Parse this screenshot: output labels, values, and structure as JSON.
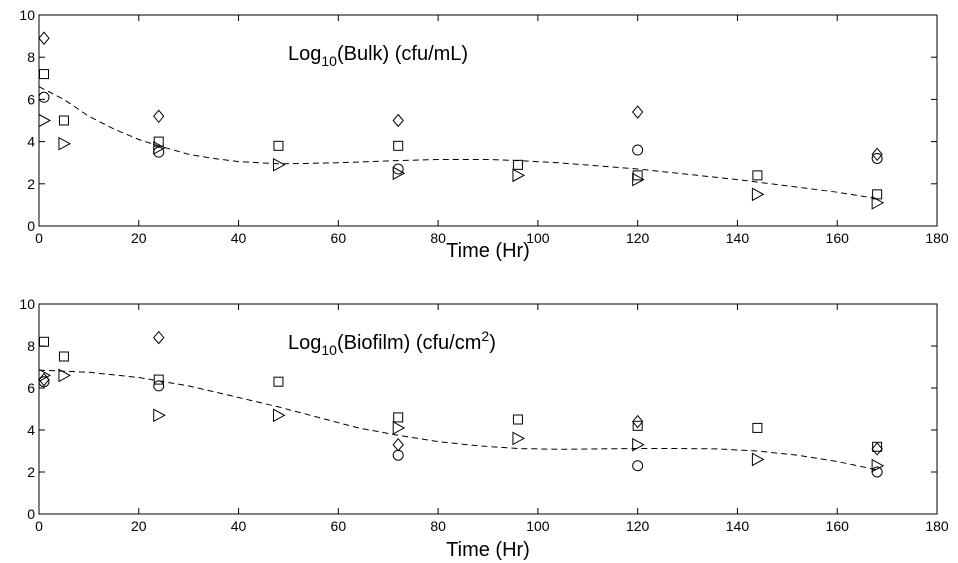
{
  "chart_data": [
    {
      "type": "scatter",
      "title_parts": {
        "pre": "Log",
        "sub": "10",
        "post": "(Bulk) (cfu/mL)",
        "sup": ""
      },
      "xlabel": "Time (Hr)",
      "ylabel": "",
      "xlim": [
        0,
        180
      ],
      "ylim": [
        0,
        10
      ],
      "xticks": [
        0,
        20,
        40,
        60,
        80,
        100,
        120,
        140,
        160,
        180
      ],
      "yticks": [
        0,
        2,
        4,
        6,
        8,
        10
      ],
      "grid": false,
      "series": [
        {
          "marker": "diamond",
          "points": [
            [
              1,
              8.9
            ],
            [
              24,
              5.2
            ],
            [
              72,
              5.0
            ],
            [
              120,
              5.4
            ],
            [
              168,
              3.4
            ]
          ]
        },
        {
          "marker": "square",
          "points": [
            [
              1,
              7.2
            ],
            [
              5,
              5.0
            ],
            [
              24,
              4.0
            ],
            [
              48,
              3.8
            ],
            [
              72,
              3.8
            ],
            [
              96,
              2.9
            ],
            [
              120,
              2.4
            ],
            [
              144,
              2.4
            ],
            [
              168,
              1.5
            ]
          ]
        },
        {
          "marker": "circle",
          "points": [
            [
              1,
              6.1
            ],
            [
              24,
              3.5
            ],
            [
              72,
              2.7
            ],
            [
              120,
              3.6
            ],
            [
              168,
              3.2
            ]
          ]
        },
        {
          "marker": "triangle-right",
          "points": [
            [
              1,
              5.0
            ],
            [
              5,
              3.9
            ],
            [
              24,
              3.7
            ],
            [
              48,
              2.9
            ],
            [
              72,
              2.5
            ],
            [
              96,
              2.4
            ],
            [
              120,
              2.2
            ],
            [
              144,
              1.5
            ],
            [
              168,
              1.1
            ]
          ]
        }
      ],
      "fit": {
        "style": "dashed",
        "points": [
          [
            0,
            6.6
          ],
          [
            5,
            6.0
          ],
          [
            10,
            5.2
          ],
          [
            15,
            4.6
          ],
          [
            20,
            4.1
          ],
          [
            24,
            3.8
          ],
          [
            30,
            3.4
          ],
          [
            35,
            3.2
          ],
          [
            40,
            3.05
          ],
          [
            48,
            2.95
          ],
          [
            55,
            2.97
          ],
          [
            60,
            3.0
          ],
          [
            72,
            3.1
          ],
          [
            80,
            3.15
          ],
          [
            90,
            3.15
          ],
          [
            96,
            3.1
          ],
          [
            104,
            3.0
          ],
          [
            112,
            2.85
          ],
          [
            120,
            2.7
          ],
          [
            130,
            2.45
          ],
          [
            140,
            2.2
          ],
          [
            150,
            1.9
          ],
          [
            160,
            1.6
          ],
          [
            168,
            1.3
          ]
        ]
      }
    },
    {
      "type": "scatter",
      "title_parts": {
        "pre": "Log",
        "sub": "10",
        "post": "(Biofilm) (cfu/cm",
        "sup": "2",
        "end": ")"
      },
      "xlabel": "Time (Hr)",
      "ylabel": "",
      "xlim": [
        0,
        180
      ],
      "ylim": [
        0,
        10
      ],
      "xticks": [
        0,
        20,
        40,
        60,
        80,
        100,
        120,
        140,
        160,
        180
      ],
      "yticks": [
        0,
        2,
        4,
        6,
        8,
        10
      ],
      "grid": false,
      "series": [
        {
          "marker": "diamond",
          "points": [
            [
              1,
              6.4
            ],
            [
              24,
              8.4
            ],
            [
              72,
              3.3
            ],
            [
              120,
              4.4
            ],
            [
              168,
              3.1
            ]
          ]
        },
        {
          "marker": "square",
          "points": [
            [
              1,
              8.2
            ],
            [
              5,
              7.5
            ],
            [
              24,
              6.4
            ],
            [
              48,
              6.3
            ],
            [
              72,
              4.6
            ],
            [
              96,
              4.5
            ],
            [
              120,
              4.2
            ],
            [
              144,
              4.1
            ],
            [
              168,
              3.2
            ]
          ]
        },
        {
          "marker": "circle",
          "points": [
            [
              1,
              6.3
            ],
            [
              24,
              6.1
            ],
            [
              72,
              2.8
            ],
            [
              120,
              2.3
            ],
            [
              168,
              2.0
            ]
          ]
        },
        {
          "marker": "triangle-right",
          "points": [
            [
              1,
              6.6
            ],
            [
              5,
              6.6
            ],
            [
              24,
              4.7
            ],
            [
              48,
              4.7
            ],
            [
              72,
              4.1
            ],
            [
              96,
              3.6
            ],
            [
              120,
              3.3
            ],
            [
              144,
              2.6
            ],
            [
              168,
              2.3
            ]
          ]
        }
      ],
      "fit": {
        "style": "dashed",
        "points": [
          [
            0,
            6.85
          ],
          [
            10,
            6.75
          ],
          [
            20,
            6.5
          ],
          [
            30,
            6.1
          ],
          [
            40,
            5.55
          ],
          [
            48,
            5.1
          ],
          [
            56,
            4.6
          ],
          [
            64,
            4.1
          ],
          [
            72,
            3.75
          ],
          [
            80,
            3.45
          ],
          [
            88,
            3.25
          ],
          [
            96,
            3.12
          ],
          [
            104,
            3.08
          ],
          [
            112,
            3.1
          ],
          [
            120,
            3.12
          ],
          [
            128,
            3.12
          ],
          [
            136,
            3.1
          ],
          [
            144,
            3.0
          ],
          [
            152,
            2.8
          ],
          [
            160,
            2.5
          ],
          [
            168,
            2.1
          ]
        ]
      }
    }
  ]
}
